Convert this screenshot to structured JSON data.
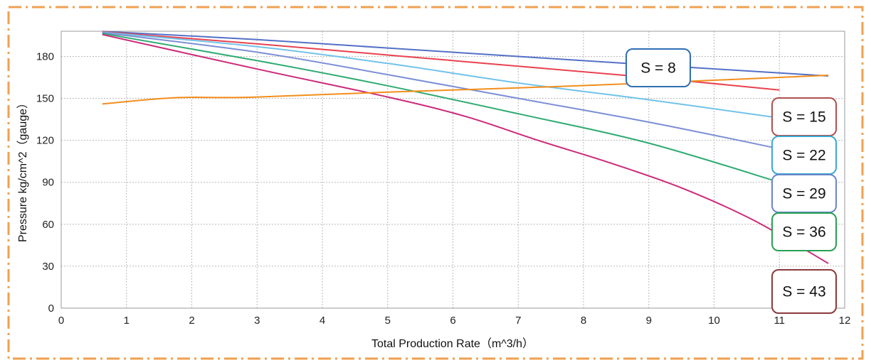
{
  "chart_data": {
    "type": "line",
    "xlabel": "Total Production Rate（m^3/h）",
    "ylabel": "Pressure kg/cm^2（gauge）",
    "xlim": [
      0,
      12
    ],
    "ylim": [
      0,
      198
    ],
    "x_ticks": [
      0,
      1,
      2,
      3,
      4,
      5,
      6,
      7,
      8,
      9,
      10,
      11,
      12
    ],
    "y_ticks": [
      0,
      30,
      60,
      90,
      120,
      150,
      180
    ],
    "grid": true,
    "grid_style": "dotted",
    "series": [
      {
        "color": "#5470c6",
        "x": [
          0.63,
          3,
          5,
          7,
          9,
          11.75
        ],
        "y": [
          197.9,
          192,
          186,
          180,
          174,
          166
        ]
      },
      {
        "color": "#e8424f",
        "x": [
          0.63,
          3,
          5,
          7,
          9,
          11
        ],
        "y": [
          197.6,
          189,
          181,
          173,
          165,
          156
        ]
      },
      {
        "color": "#72c2ea",
        "x": [
          0.63,
          3,
          5,
          7,
          9,
          11
        ],
        "y": [
          197.3,
          187,
          175,
          161,
          149,
          136
        ]
      },
      {
        "color": "#7b8fd6",
        "x": [
          0.63,
          3,
          5,
          7,
          9,
          11
        ],
        "y": [
          197.0,
          183,
          167,
          150,
          133,
          114
        ]
      },
      {
        "color": "#2eaa72",
        "x": [
          0.63,
          3,
          5,
          7,
          9,
          11
        ],
        "y": [
          196.4,
          177,
          159,
          139,
          118,
          90
        ]
      },
      {
        "color": "#cc2a7a",
        "x": [
          0.63,
          3,
          5,
          6.2,
          7.3,
          8.4,
          9.5,
          10.6,
          11.75
        ],
        "y": [
          195.6,
          171,
          151,
          137,
          120,
          104,
          86,
          63,
          32
        ]
      },
      {
        "color": "#f28e1c",
        "x": [
          0.63,
          1.75,
          2.9,
          5,
          7,
          9,
          11.75
        ],
        "y": [
          146,
          150.5,
          150.8,
          154.5,
          157.5,
          161,
          166.5
        ]
      }
    ],
    "annotations": [
      {
        "text": "S = 8",
        "border_color": "#2e6fb4"
      },
      {
        "text": "S = 15",
        "border_color": "#b0504f"
      },
      {
        "text": "S = 22",
        "border_color": "#3aa9d6"
      },
      {
        "text": "S = 29",
        "border_color": "#6a86c8"
      },
      {
        "text": "S = 36",
        "border_color": "#27a052"
      },
      {
        "text": "S = 43",
        "border_color": "#8b3a3a"
      }
    ],
    "frame_color": "#f0a050"
  }
}
